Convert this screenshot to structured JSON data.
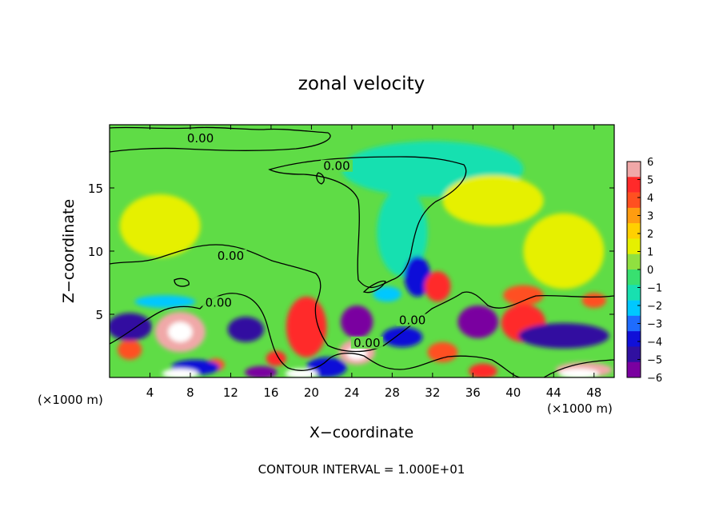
{
  "chart_data": {
    "type": "heatmap",
    "title": "zonal velocity",
    "xlabel": "X−coordinate",
    "ylabel": "Z−coordinate",
    "x_unit_left": "(×1000 m)",
    "x_unit_right": "(×1000 m)",
    "footnote": "CONTOUR INTERVAL = 1.000E+01",
    "xlim": [
      0,
      50
    ],
    "ylim": [
      0,
      20
    ],
    "x_ticks": [
      4,
      8,
      12,
      16,
      20,
      24,
      28,
      32,
      36,
      40,
      44,
      48
    ],
    "y_ticks": [
      5,
      10,
      15
    ],
    "colorbar": {
      "min": -6,
      "max": 6,
      "labels": [
        "6",
        "5",
        "4",
        "3",
        "2",
        "1",
        "0",
        "−1",
        "−2",
        "−3",
        "−4",
        "−5",
        "−6"
      ],
      "colors": [
        "#f0a8a8",
        "#ff2a2a",
        "#ff5020",
        "#ff9c10",
        "#ffd000",
        "#e6f000",
        "#90e040",
        "#38e070",
        "#18e0b0",
        "#00c8ff",
        "#1e6cff",
        "#1010d8",
        "#3010a0",
        "#7a00a0"
      ]
    },
    "contour_labels": [
      {
        "text": "0.00",
        "x": 9.0,
        "z": 18.8
      },
      {
        "text": "0.00",
        "x": 22.5,
        "z": 16.6
      },
      {
        "text": "0.00",
        "x": 12.0,
        "z": 9.5
      },
      {
        "text": "0.00",
        "x": 10.8,
        "z": 5.8
      },
      {
        "text": "0.00",
        "x": 30.0,
        "z": 4.4
      },
      {
        "text": "0.00",
        "x": 25.5,
        "z": 2.6
      }
    ],
    "features": [
      {
        "value": 5,
        "x": 7,
        "z": 3.6,
        "rx": 2.5,
        "rz": 1.6
      },
      {
        "value": 6,
        "x": 7,
        "z": 3.6,
        "rx": 1.2,
        "rz": 0.8
      },
      {
        "value": 4,
        "x": 19.5,
        "z": 4.0,
        "rx": 2.0,
        "rz": 2.4
      },
      {
        "value": 5,
        "x": 24.5,
        "z": 2.0,
        "rx": 1.8,
        "rz": 1.0
      },
      {
        "value": 6,
        "x": 24.5,
        "z": 1.9,
        "rx": 1.0,
        "rz": 0.5
      },
      {
        "value": 4,
        "x": 32.5,
        "z": 7.2,
        "rx": 1.3,
        "rz": 1.2
      },
      {
        "value": 4,
        "x": 41,
        "z": 4.3,
        "rx": 2.2,
        "rz": 1.5
      },
      {
        "value": 3,
        "x": 41,
        "z": 6.5,
        "rx": 2.0,
        "rz": 0.8
      },
      {
        "value": 3,
        "x": 2.0,
        "z": 2.2,
        "rx": 1.2,
        "rz": 0.8
      },
      {
        "value": 3,
        "x": 33,
        "z": 2.0,
        "rx": 1.5,
        "rz": 0.8
      },
      {
        "value": 4,
        "x": 37,
        "z": 0.5,
        "rx": 1.4,
        "rz": 0.6
      },
      {
        "value": 3,
        "x": 48,
        "z": 6.1,
        "rx": 1.2,
        "rz": 0.6
      },
      {
        "value": 5,
        "x": 47,
        "z": 0.6,
        "rx": 2.8,
        "rz": 0.6
      },
      {
        "value": 6,
        "x": 46.5,
        "z": 0.3,
        "rx": 2.0,
        "rz": 0.4
      },
      {
        "value": 4,
        "x": 16.5,
        "z": 1.5,
        "rx": 1.0,
        "rz": 0.6
      },
      {
        "value": 3,
        "x": 10.5,
        "z": 1.0,
        "rx": 0.9,
        "rz": 0.5
      },
      {
        "value": -4,
        "x": 2.0,
        "z": 4.0,
        "rx": 2.2,
        "rz": 1.1
      },
      {
        "value": -4,
        "x": 13.5,
        "z": 3.8,
        "rx": 1.8,
        "rz": 1.0
      },
      {
        "value": -5,
        "x": 24.5,
        "z": 4.4,
        "rx": 1.6,
        "rz": 1.3
      },
      {
        "value": -5,
        "x": 36.5,
        "z": 4.4,
        "rx": 2.0,
        "rz": 1.3
      },
      {
        "value": -4,
        "x": 45,
        "z": 3.3,
        "rx": 4.5,
        "rz": 1.0
      },
      {
        "value": -3,
        "x": 30.5,
        "z": 8.0,
        "rx": 1.3,
        "rz": 1.6
      },
      {
        "value": -3,
        "x": 29.0,
        "z": 3.2,
        "rx": 2.0,
        "rz": 0.8
      },
      {
        "value": -5,
        "x": 15.0,
        "z": 0.4,
        "rx": 1.6,
        "rz": 0.5
      },
      {
        "value": -3,
        "x": 21.5,
        "z": 0.8,
        "rx": 2.0,
        "rz": 0.8
      },
      {
        "value": -3,
        "x": 8.5,
        "z": 0.8,
        "rx": 2.4,
        "rz": 0.6
      },
      {
        "value": 6,
        "x": 7.0,
        "z": 0.3,
        "rx": 1.8,
        "rz": 0.4
      },
      {
        "value": 6,
        "x": 19.0,
        "z": 0.3,
        "rx": 1.6,
        "rz": 0.4
      },
      {
        "value": -2,
        "x": 5.5,
        "z": 6.0,
        "rx": 3.0,
        "rz": 0.5
      },
      {
        "value": -2,
        "x": 27.5,
        "z": 6.6,
        "rx": 1.4,
        "rz": 0.6
      },
      {
        "value": -1,
        "x": 32,
        "z": 16.5,
        "rx": 9.0,
        "rz": 2.2
      },
      {
        "value": -1,
        "x": 29,
        "z": 11.5,
        "rx": 2.5,
        "rz": 3.5
      },
      {
        "value": 1,
        "x": 5,
        "z": 12,
        "rx": 4.0,
        "rz": 2.5
      },
      {
        "value": 1,
        "x": 45,
        "z": 10,
        "rx": 4.0,
        "rz": 3.0
      },
      {
        "value": 1,
        "x": 38,
        "z": 14,
        "rx": 5.0,
        "rz": 2.0
      }
    ]
  }
}
